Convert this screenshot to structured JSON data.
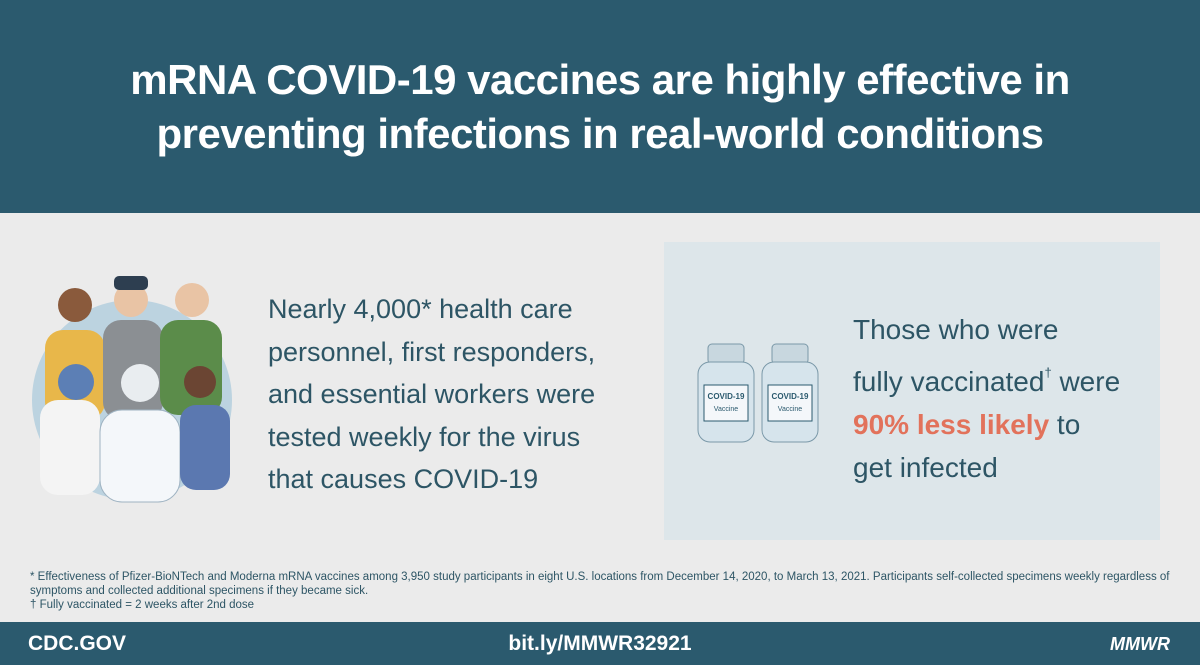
{
  "header": {
    "title": "mRNA COVID-19 vaccines are highly effective in preventing infections in real-world conditions"
  },
  "study": {
    "lines": [
      "Nearly 4,000* health care",
      "personnel, first responders,",
      "and essential workers were",
      "tested weekly for the virus",
      "that causes COVID-19"
    ]
  },
  "finding": {
    "line1": "Those who were",
    "line2": "fully vaccinated",
    "dagger": "†",
    "line2_end": " were",
    "highlight": "90% less likely",
    "line3_end": " to",
    "line4": "get infected"
  },
  "vial": {
    "label": "COVID-19",
    "sublabel": "Vaccine"
  },
  "footnotes": [
    "* Effectiveness of Pfizer-BioNTech and Moderna mRNA vaccines among 3,950 study participants in eight U.S. locations from December 14, 2020, to March 13, 2021. Participants self-collected specimens weekly regardless of symptoms and collected additional specimens if they became sick.",
    "† Fully vaccinated = 2 weeks after 2nd dose"
  ],
  "footer": {
    "left": "CDC.GOV",
    "center": "bit.ly/MMWR32921",
    "right": "MMWR"
  }
}
